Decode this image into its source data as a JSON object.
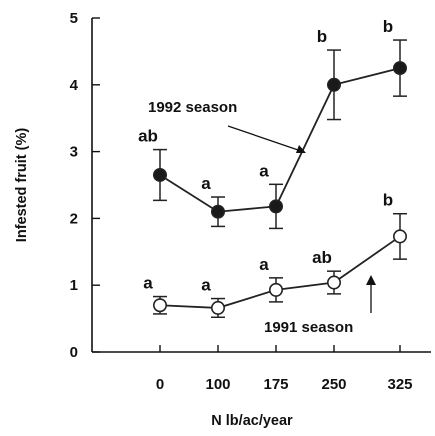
{
  "chart_data": {
    "type": "line",
    "categories": [
      "0",
      "100",
      "175",
      "250",
      "325"
    ],
    "ylabel": "Infested fruit (%)",
    "xlabel": "N lb/ac/year",
    "ylim": [
      0,
      5
    ],
    "yticks": [
      "0",
      "1",
      "2",
      "3",
      "4",
      "5"
    ],
    "grid": false,
    "legend": "none",
    "series": [
      {
        "name": "1992 season",
        "marker": "filled-circle",
        "color": "#1a1a1a",
        "values": [
          2.65,
          2.1,
          2.18,
          4.0,
          4.25
        ],
        "error": [
          0.38,
          0.22,
          0.33,
          0.52,
          0.42
        ],
        "letters": [
          "ab",
          "a",
          "a",
          "b",
          "b"
        ]
      },
      {
        "name": "1991 season",
        "marker": "open-circle",
        "color": "#ffffff",
        "values": [
          0.7,
          0.66,
          0.93,
          1.04,
          1.73
        ],
        "error": [
          0.13,
          0.14,
          0.18,
          0.17,
          0.34
        ],
        "letters": [
          "a",
          "a",
          "a",
          "ab",
          "b"
        ]
      }
    ]
  }
}
